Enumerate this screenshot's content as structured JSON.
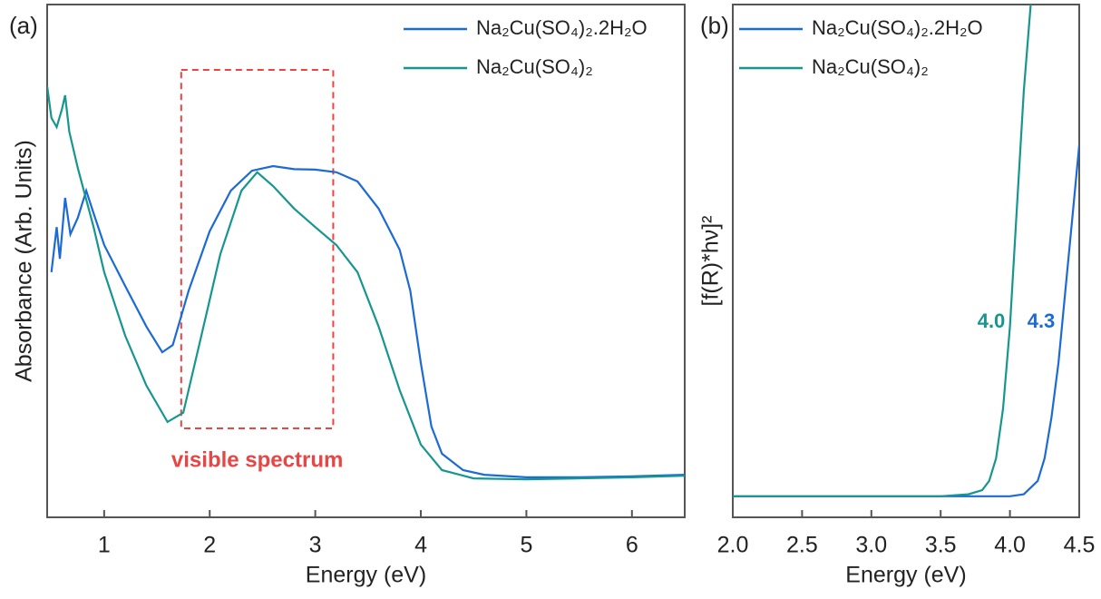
{
  "chart_data": [
    {
      "type": "line",
      "panel_label": "(a)",
      "xlabel": "Energy (eV)",
      "ylabel": "Absorbance (Arb. Units)",
      "xlim": [
        0.46,
        6.5
      ],
      "ylim": [
        0,
        100
      ],
      "xticks": [
        1,
        2,
        3,
        4,
        5,
        6
      ],
      "legend": "upper right",
      "series": [
        {
          "name": "Na₂Cu(SO₄)₂.2H₂O",
          "color": "#1c6ad6",
          "x": [
            0.5,
            0.55,
            0.58,
            0.63,
            0.68,
            0.75,
            0.83,
            0.9,
            1.0,
            1.2,
            1.4,
            1.55,
            1.65,
            1.8,
            2.0,
            2.2,
            2.4,
            2.6,
            2.8,
            3.0,
            3.2,
            3.4,
            3.6,
            3.8,
            3.9,
            4.0,
            4.1,
            4.2,
            4.4,
            4.6,
            5.0,
            5.5,
            6.0,
            6.5
          ],
          "values": [
            47.8,
            56.6,
            50.4,
            62.3,
            55.2,
            58.4,
            63.7,
            59.3,
            53.1,
            45.1,
            37.2,
            32.2,
            33.6,
            44.2,
            55.8,
            63.7,
            67.6,
            68.5,
            67.9,
            67.8,
            67.3,
            65.5,
            60.2,
            52.2,
            44.2,
            30.1,
            17.7,
            12.4,
            9.2,
            8.3,
            7.8,
            7.8,
            8.0,
            8.3
          ]
        },
        {
          "name": "Na₂Cu(SO₄)₂",
          "color": "#17968f",
          "x": [
            0.46,
            0.5,
            0.55,
            0.6,
            0.63,
            0.67,
            0.75,
            0.9,
            1.0,
            1.2,
            1.4,
            1.6,
            1.75,
            1.9,
            2.1,
            2.3,
            2.45,
            2.6,
            2.8,
            3.0,
            3.2,
            3.4,
            3.6,
            3.8,
            4.0,
            4.2,
            4.5,
            5.0,
            6.0,
            6.5
          ],
          "values": [
            84.1,
            77.9,
            76.1,
            79.6,
            82.3,
            75.2,
            68.1,
            56.6,
            47.8,
            35.4,
            25.7,
            18.6,
            20.4,
            33.6,
            51.3,
            63.7,
            67.3,
            64.6,
            60.2,
            56.6,
            53.1,
            47.8,
            37.2,
            24.8,
            14.2,
            9.2,
            7.6,
            7.4,
            7.8,
            8.1
          ]
        }
      ],
      "annotations": [
        {
          "text": "visible spectrum",
          "color": "#e84545",
          "span": [
            1.73,
            3.17
          ]
        }
      ]
    },
    {
      "type": "line",
      "panel_label": "(b)",
      "xlabel": "Energy (eV)",
      "ylabel": "[f(R)*hν]²",
      "xlim": [
        2.0,
        4.5
      ],
      "ylim": [
        0,
        100
      ],
      "xticks": [
        {
          "value": 2,
          "label": "2.0"
        },
        {
          "value": 2.5,
          "label": "2.5"
        },
        {
          "value": 3,
          "label": "3.0"
        },
        {
          "value": 3.5,
          "label": "3.5"
        },
        {
          "value": 4,
          "label": "4.0"
        },
        {
          "value": 4.5,
          "label": "4.5"
        }
      ],
      "legend": "upper left",
      "series": [
        {
          "name": "Na₂Cu(SO₄)₂.2H₂O",
          "color": "#1c6ad6",
          "x": [
            2.0,
            4.0,
            4.1,
            4.2,
            4.25,
            4.3,
            4.35,
            4.4,
            4.45,
            4.5
          ],
          "values": [
            4.1,
            4.1,
            4.5,
            7.1,
            11.5,
            19.5,
            30.1,
            44.2,
            58.4,
            72.6
          ]
        },
        {
          "name": "Na₂Cu(SO₄)₂",
          "color": "#17968f",
          "x": [
            2.0,
            3.5,
            3.7,
            3.8,
            3.85,
            3.9,
            3.95,
            4.0,
            4.05,
            4.1,
            4.15
          ],
          "values": [
            4.1,
            4.1,
            4.5,
            5.3,
            7.1,
            11.5,
            21.2,
            37.2,
            60.2,
            83.2,
            100
          ]
        }
      ],
      "annotations": [
        {
          "text": "4.0",
          "color": "#17968f"
        },
        {
          "text": "4.3",
          "color": "#1c6ad6"
        }
      ]
    }
  ]
}
